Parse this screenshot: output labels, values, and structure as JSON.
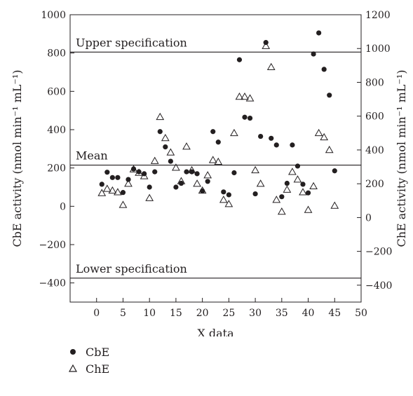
{
  "chart_data": {
    "type": "scatter",
    "xlabel": "X data",
    "ylabel_left": "CbE activity (nmol min⁻¹ mL⁻¹)",
    "ylabel_right": "ChE activity (nmol min⁻¹ mL⁻¹)",
    "xlim": [
      -5,
      50
    ],
    "ylim_left": [
      -500,
      1000
    ],
    "ylim_right": [
      -500,
      1200
    ],
    "xticks": [
      0,
      5,
      10,
      15,
      20,
      25,
      30,
      35,
      40,
      45,
      50
    ],
    "yticks_left": [
      -400,
      -200,
      0,
      200,
      400,
      600,
      800,
      1000
    ],
    "yticks_right": [
      -400,
      -200,
      0,
      200,
      400,
      600,
      800,
      1000,
      1200
    ],
    "reference_lines": [
      {
        "label": "Upper specification",
        "y": 805,
        "axis": "left"
      },
      {
        "label": "Mean",
        "y": 215,
        "axis": "left"
      },
      {
        "label": "Lower specification",
        "y": -375,
        "axis": "left"
      }
    ],
    "series": [
      {
        "name": "CbE",
        "marker": "filled-circle",
        "axis": "left",
        "x": [
          1,
          2,
          3,
          4,
          5,
          6,
          7,
          8,
          9,
          10,
          11,
          12,
          13,
          14,
          15,
          16,
          17,
          18,
          19,
          20,
          21,
          22,
          23,
          24,
          25,
          26,
          27,
          28,
          29,
          30,
          31,
          32,
          33,
          34,
          35,
          36,
          37,
          38,
          39,
          40,
          41,
          42,
          43,
          44,
          45
        ],
        "values": [
          115,
          178,
          150,
          150,
          72,
          140,
          195,
          180,
          170,
          100,
          180,
          390,
          310,
          235,
          100,
          120,
          180,
          180,
          170,
          80,
          130,
          390,
          335,
          75,
          60,
          175,
          765,
          465,
          460,
          65,
          365,
          855,
          355,
          320,
          50,
          120,
          320,
          210,
          115,
          70,
          795,
          905,
          715,
          580,
          185
        ]
      },
      {
        "name": "ChE",
        "marker": "open-triangle",
        "axis": "right",
        "x": [
          1,
          2,
          3,
          4,
          5,
          6,
          7,
          8,
          9,
          10,
          11,
          12,
          13,
          14,
          15,
          16,
          17,
          18,
          19,
          20,
          21,
          22,
          23,
          24,
          25,
          26,
          27,
          28,
          29,
          30,
          31,
          32,
          33,
          34,
          35,
          36,
          37,
          38,
          39,
          40,
          41,
          42,
          43,
          44,
          45
        ],
        "values": [
          145,
          170,
          160,
          150,
          75,
          200,
          285,
          265,
          245,
          115,
          335,
          595,
          470,
          385,
          295,
          215,
          420,
          280,
          200,
          160,
          250,
          340,
          330,
          105,
          80,
          500,
          715,
          715,
          705,
          280,
          200,
          1015,
          890,
          105,
          35,
          165,
          270,
          225,
          150,
          45,
          185,
          500,
          475,
          400,
          70
        ]
      }
    ]
  },
  "legend": {
    "items": [
      {
        "label": "CbE",
        "marker": "filled-circle"
      },
      {
        "label": "ChE",
        "marker": "open-triangle"
      }
    ]
  }
}
